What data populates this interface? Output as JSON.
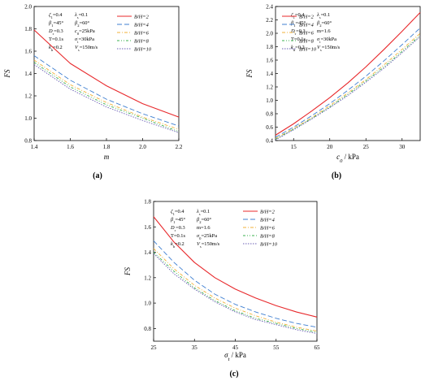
{
  "figure": {
    "panels": [
      "(a)",
      "(b)",
      "(c)"
    ]
  },
  "legend_labels": [
    "B/H=2",
    "B/H=4",
    "B/H=6",
    "B/H=8",
    "B/H=10"
  ],
  "series_colors": [
    "#e8282b",
    "#3f7fd1",
    "#f2b23a",
    "#3bb04f",
    "#6a5fb5"
  ],
  "chart_data": [
    {
      "type": "line",
      "panel": "(a)",
      "xlabel": "m",
      "ylabel": "FS",
      "xlim": [
        1.4,
        2.2
      ],
      "ylim": [
        0.8,
        2.0
      ],
      "xticks": [
        "1.4",
        "1.6",
        "1.8",
        "2.0",
        "2.2"
      ],
      "yticks": [
        "0.8",
        "1.0",
        "1.2",
        "1.4",
        "1.6",
        "1.8",
        "2.0"
      ],
      "params": [
        [
          "ζ1=0.4",
          "λs=0.1"
        ],
        [
          "β1=45°",
          "β2=60°"
        ],
        [
          "Dr=0.3",
          "c0=25kPa"
        ],
        [
          "T=0.1s",
          "σt=30kPa"
        ],
        [
          "kh=0.2",
          "Vs=150m/s"
        ]
      ],
      "x": [
        1.4,
        1.6,
        1.8,
        2.0,
        2.2
      ],
      "series": [
        {
          "name": "B/H=2",
          "values": [
            1.79,
            1.49,
            1.29,
            1.13,
            1.01
          ]
        },
        {
          "name": "B/H=4",
          "values": [
            1.56,
            1.34,
            1.17,
            1.04,
            0.93
          ]
        },
        {
          "name": "B/H=6",
          "values": [
            1.52,
            1.3,
            1.14,
            1.01,
            0.9
          ]
        },
        {
          "name": "B/H=8",
          "values": [
            1.5,
            1.28,
            1.12,
            1.0,
            0.88
          ]
        },
        {
          "name": "B/H=10",
          "values": [
            1.48,
            1.26,
            1.1,
            0.98,
            0.87
          ]
        }
      ]
    },
    {
      "type": "line",
      "panel": "(b)",
      "xlabel": "c0 / kPa",
      "ylabel": "FS",
      "xlim": [
        12.5,
        32.5
      ],
      "ylim": [
        0.4,
        2.4
      ],
      "xticks": [
        "15",
        "20",
        "25",
        "30"
      ],
      "yticks": [
        "0.4",
        "0.6",
        "0.8",
        "1.0",
        "1.2",
        "1.4",
        "1.6",
        "1.8",
        "2.0",
        "2.2",
        "2.4"
      ],
      "params": [
        [
          "ζ1=0.4",
          "λs=0.1"
        ],
        [
          "β1=45°",
          "β2=60°"
        ],
        [
          "Dr=0.3",
          "m=1.6"
        ],
        [
          "T=0.1s",
          "σt=30kPa"
        ],
        [
          "kh=0.2",
          "Vs=150m/s"
        ]
      ],
      "x": [
        12.5,
        15,
        17.5,
        20,
        22.5,
        25,
        27.5,
        30,
        32.5
      ],
      "series": [
        {
          "name": "B/H=2",
          "values": [
            0.48,
            0.65,
            0.84,
            1.04,
            1.26,
            1.5,
            1.76,
            2.03,
            2.31
          ]
        },
        {
          "name": "B/H=4",
          "values": [
            0.45,
            0.6,
            0.77,
            0.95,
            1.15,
            1.36,
            1.59,
            1.83,
            2.08
          ]
        },
        {
          "name": "B/H=6",
          "values": [
            0.43,
            0.58,
            0.74,
            0.92,
            1.11,
            1.31,
            1.53,
            1.76,
            2.0
          ]
        },
        {
          "name": "B/H=8",
          "values": [
            0.42,
            0.57,
            0.73,
            0.9,
            1.09,
            1.29,
            1.5,
            1.73,
            1.97
          ]
        },
        {
          "name": "B/H=10",
          "values": [
            0.41,
            0.56,
            0.72,
            0.89,
            1.07,
            1.27,
            1.48,
            1.71,
            1.95
          ]
        }
      ]
    },
    {
      "type": "line",
      "panel": "(c)",
      "xlabel": "σt / kPa",
      "ylabel": "FS",
      "xlim": [
        25,
        65
      ],
      "ylim": [
        0.7,
        1.8
      ],
      "xticks": [
        "25",
        "35",
        "45",
        "55",
        "65"
      ],
      "yticks": [
        "0.8",
        "1.0",
        "1.2",
        "1.4",
        "1.6",
        "1.8"
      ],
      "params": [
        [
          "ζ1=0.4",
          "λs=0.1"
        ],
        [
          "β1=45°",
          "β2=60°"
        ],
        [
          "Dr=0.3",
          "m=1.6"
        ],
        [
          "T=0.1s",
          "σ0=25kPa"
        ],
        [
          "kh=0.2",
          "Vs=150m/s"
        ]
      ],
      "x": [
        25,
        30,
        35,
        40,
        45,
        50,
        55,
        60,
        65
      ],
      "series": [
        {
          "name": "B/H=2",
          "values": [
            1.68,
            1.48,
            1.32,
            1.2,
            1.11,
            1.04,
            0.98,
            0.93,
            0.89
          ]
        },
        {
          "name": "B/H=4",
          "values": [
            1.49,
            1.32,
            1.18,
            1.07,
            0.99,
            0.93,
            0.88,
            0.84,
            0.81
          ]
        },
        {
          "name": "B/H=6",
          "values": [
            1.43,
            1.27,
            1.14,
            1.04,
            0.96,
            0.9,
            0.85,
            0.81,
            0.78
          ]
        },
        {
          "name": "B/H=8",
          "values": [
            1.4,
            1.25,
            1.12,
            1.02,
            0.94,
            0.88,
            0.84,
            0.8,
            0.77
          ]
        },
        {
          "name": "B/H=10",
          "values": [
            1.39,
            1.23,
            1.11,
            1.01,
            0.93,
            0.87,
            0.83,
            0.79,
            0.76
          ]
        }
      ]
    }
  ]
}
